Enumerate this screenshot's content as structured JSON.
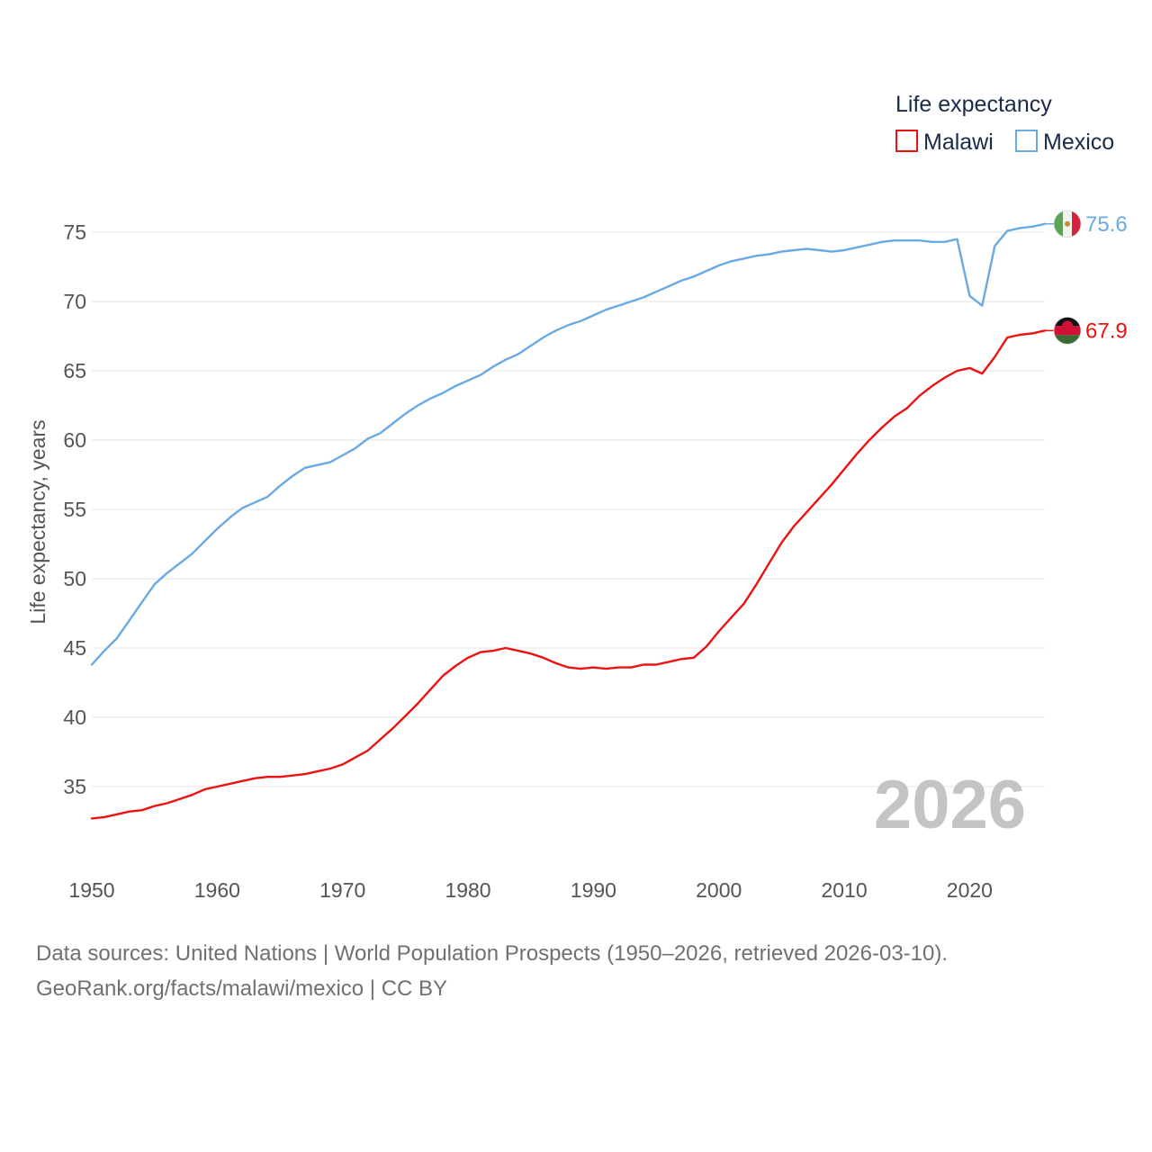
{
  "chart_data": {
    "type": "line",
    "title": "Life expectancy",
    "ylabel": "Life expectancy, years",
    "xlabel": "",
    "ylim": [
      30,
      77
    ],
    "xlim": [
      1950,
      2026
    ],
    "xticks": [
      1950,
      1960,
      1970,
      1980,
      1990,
      2000,
      2010,
      2020
    ],
    "yticks": [
      35,
      40,
      45,
      50,
      55,
      60,
      65,
      70,
      75
    ],
    "year_label": "2026",
    "legend_position": "top-right",
    "x": [
      1950,
      1951,
      1952,
      1953,
      1954,
      1955,
      1956,
      1957,
      1958,
      1959,
      1960,
      1961,
      1962,
      1963,
      1964,
      1965,
      1966,
      1967,
      1968,
      1969,
      1970,
      1971,
      1972,
      1973,
      1974,
      1975,
      1976,
      1977,
      1978,
      1979,
      1980,
      1981,
      1982,
      1983,
      1984,
      1985,
      1986,
      1987,
      1988,
      1989,
      1990,
      1991,
      1992,
      1993,
      1994,
      1995,
      1996,
      1997,
      1998,
      1999,
      2000,
      2001,
      2002,
      2003,
      2004,
      2005,
      2006,
      2007,
      2008,
      2009,
      2010,
      2011,
      2012,
      2013,
      2014,
      2015,
      2016,
      2017,
      2018,
      2019,
      2020,
      2021,
      2022,
      2023,
      2024,
      2025,
      2026
    ],
    "series": [
      {
        "name": "Malawi",
        "color": "#ee1111",
        "end_label": "67.9",
        "flag": "malawi-flag",
        "values": [
          32.7,
          32.8,
          33.0,
          33.2,
          33.3,
          33.6,
          33.8,
          34.1,
          34.4,
          34.8,
          35.0,
          35.2,
          35.4,
          35.6,
          35.7,
          35.7,
          35.8,
          35.9,
          36.1,
          36.3,
          36.6,
          37.1,
          37.6,
          38.4,
          39.2,
          40.1,
          41.0,
          42.0,
          43.0,
          43.7,
          44.3,
          44.7,
          44.8,
          45.0,
          44.8,
          44.6,
          44.3,
          43.9,
          43.6,
          43.5,
          43.6,
          43.5,
          43.6,
          43.6,
          43.8,
          43.8,
          44.0,
          44.2,
          44.3,
          45.1,
          46.2,
          47.2,
          48.2,
          49.6,
          51.1,
          52.6,
          53.8,
          54.8,
          55.8,
          56.8,
          57.9,
          59.0,
          60.0,
          60.9,
          61.7,
          62.3,
          63.2,
          63.9,
          64.5,
          65.0,
          65.2,
          64.8,
          66.0,
          67.4,
          67.6,
          67.7,
          67.9
        ]
      },
      {
        "name": "Mexico",
        "color": "#6aa9e3",
        "end_label": "75.6",
        "flag": "mexico-flag",
        "values": [
          43.8,
          44.8,
          45.7,
          47.0,
          48.3,
          49.6,
          50.4,
          51.1,
          51.8,
          52.7,
          53.6,
          54.4,
          55.1,
          55.5,
          55.9,
          56.7,
          57.4,
          58.0,
          58.2,
          58.4,
          58.9,
          59.4,
          60.1,
          60.5,
          61.2,
          61.9,
          62.5,
          63.0,
          63.4,
          63.9,
          64.3,
          64.7,
          65.3,
          65.8,
          66.2,
          66.8,
          67.4,
          67.9,
          68.3,
          68.6,
          69.0,
          69.4,
          69.7,
          70.0,
          70.3,
          70.7,
          71.1,
          71.5,
          71.8,
          72.2,
          72.6,
          72.9,
          73.1,
          73.3,
          73.4,
          73.6,
          73.7,
          73.8,
          73.7,
          73.6,
          73.7,
          73.9,
          74.1,
          74.3,
          74.4,
          74.4,
          74.4,
          74.3,
          74.3,
          74.5,
          70.4,
          69.7,
          74.0,
          75.1,
          75.3,
          75.4,
          75.6
        ]
      }
    ]
  },
  "footer": {
    "line1": "Data sources: United Nations | World Population Prospects (1950–2026, retrieved 2026-03-10).",
    "line2": "GeoRank.org/facts/malawi/mexico | CC BY"
  }
}
